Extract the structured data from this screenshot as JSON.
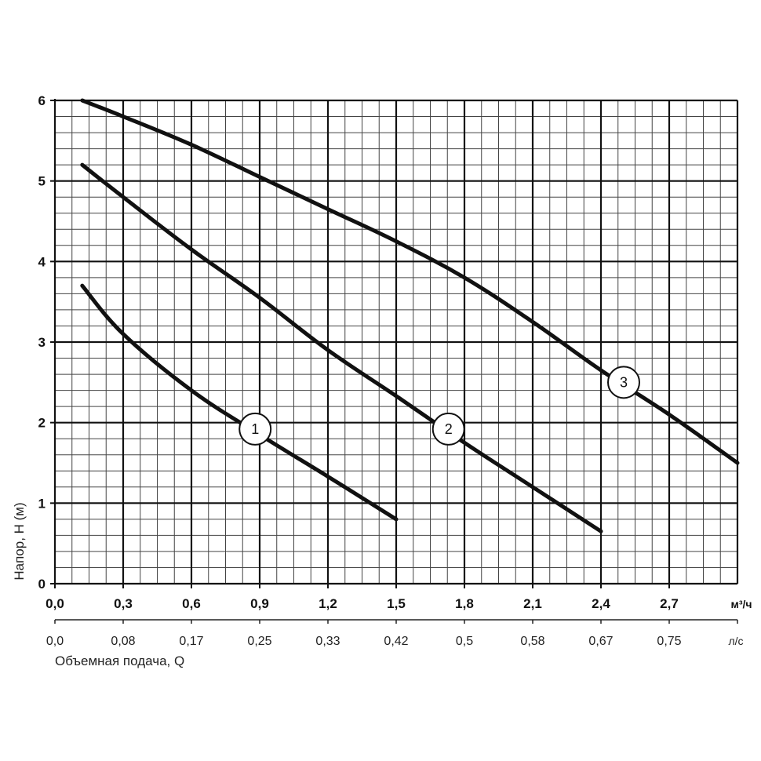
{
  "chart_data": {
    "type": "line",
    "title": "",
    "ylabel": "Напор, H (м)",
    "xlabel": "Объемная подача, Q",
    "x_unit_primary": "м³/ч",
    "x_unit_secondary": "л/с",
    "xlim": [
      0,
      3.0
    ],
    "ylim": [
      0,
      6
    ],
    "grid": true,
    "x_ticks_primary": [
      "0,0",
      "0,3",
      "0,6",
      "0,9",
      "1,2",
      "1,5",
      "1,8",
      "2,1",
      "2,4",
      "2,7"
    ],
    "x_ticks_secondary": [
      "0,0",
      "0,08",
      "0,17",
      "0,25",
      "0,33",
      "0,42",
      "0,5",
      "0,58",
      "0,67",
      "0,75"
    ],
    "y_ticks": [
      "0",
      "1",
      "2",
      "3",
      "4",
      "5",
      "6"
    ],
    "series": [
      {
        "name": "1",
        "x": [
          0.12,
          0.3,
          0.6,
          0.9,
          1.2,
          1.5
        ],
        "y": [
          3.7,
          3.1,
          2.4,
          1.85,
          1.33,
          0.8
        ]
      },
      {
        "name": "2",
        "x": [
          0.12,
          0.3,
          0.6,
          0.9,
          1.2,
          1.5,
          1.8,
          2.1,
          2.4
        ],
        "y": [
          5.2,
          4.8,
          4.15,
          3.55,
          2.9,
          2.33,
          1.75,
          1.2,
          0.65
        ]
      },
      {
        "name": "3",
        "x": [
          0.12,
          0.3,
          0.6,
          0.9,
          1.2,
          1.5,
          1.8,
          2.1,
          2.4,
          2.7,
          3.0
        ],
        "y": [
          6.0,
          5.8,
          5.45,
          5.05,
          4.65,
          4.25,
          3.8,
          3.25,
          2.65,
          2.1,
          1.5
        ]
      }
    ],
    "curve_labels": [
      {
        "text": "1",
        "x": 0.88,
        "y": 1.92
      },
      {
        "text": "2",
        "x": 1.73,
        "y": 1.92
      },
      {
        "text": "3",
        "x": 2.5,
        "y": 2.5
      }
    ]
  }
}
